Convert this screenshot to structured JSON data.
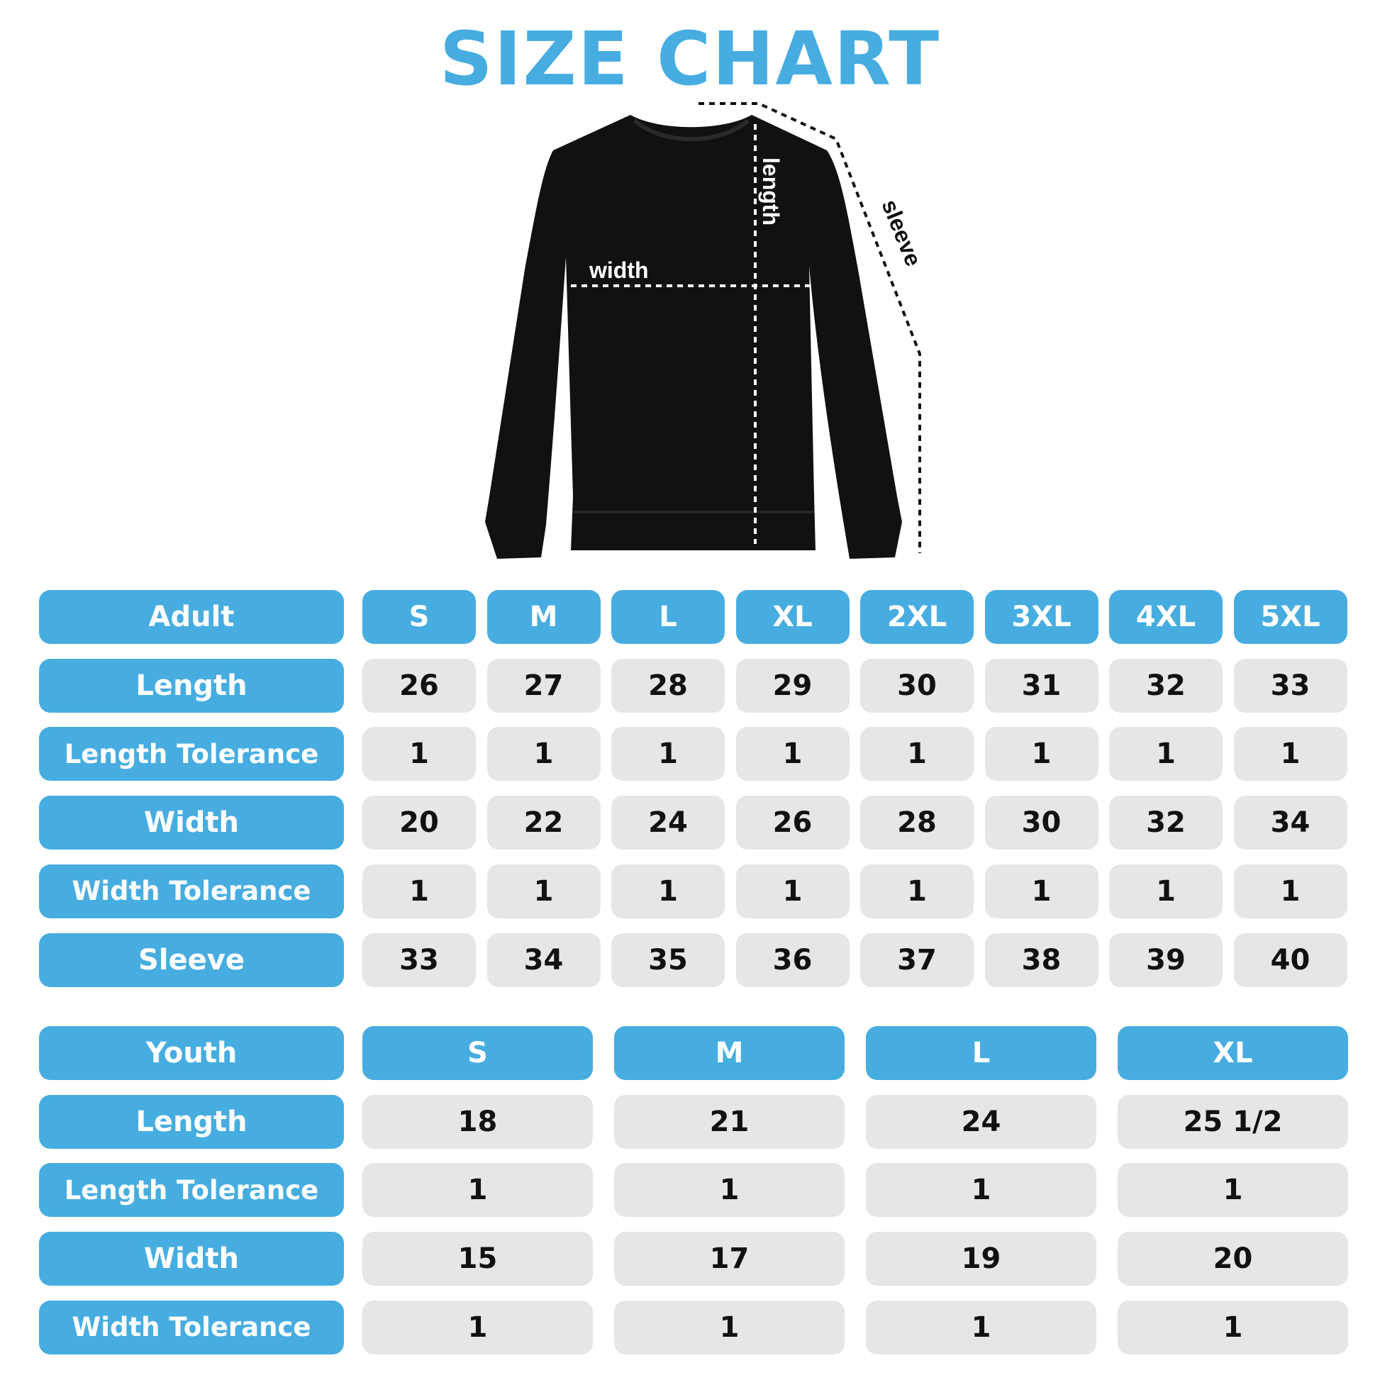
{
  "title": "SIZE CHART",
  "colors": {
    "accent": "#47ade0",
    "cell_bg": "#e6e6e8",
    "garment": "#111111"
  },
  "diagram": {
    "width_label": "width",
    "length_label": "length",
    "sleeve_label": "sleeve"
  },
  "adult": {
    "header": "Adult",
    "sizes": [
      "S",
      "M",
      "L",
      "XL",
      "2XL",
      "3XL",
      "4XL",
      "5XL"
    ],
    "rows": [
      {
        "label": "Length",
        "values": [
          "26",
          "27",
          "28",
          "29",
          "30",
          "31",
          "32",
          "33"
        ]
      },
      {
        "label": "Length Tolerance",
        "values": [
          "1",
          "1",
          "1",
          "1",
          "1",
          "1",
          "1",
          "1"
        ]
      },
      {
        "label": "Width",
        "values": [
          "20",
          "22",
          "24",
          "26",
          "28",
          "30",
          "32",
          "34"
        ]
      },
      {
        "label": "Width Tolerance",
        "values": [
          "1",
          "1",
          "1",
          "1",
          "1",
          "1",
          "1",
          "1"
        ]
      },
      {
        "label": "Sleeve",
        "values": [
          "33",
          "34",
          "35",
          "36",
          "37",
          "38",
          "39",
          "40"
        ]
      }
    ]
  },
  "youth": {
    "header": "Youth",
    "sizes": [
      "S",
      "M",
      "L",
      "XL"
    ],
    "rows": [
      {
        "label": "Length",
        "values": [
          "18",
          "21",
          "24",
          "25 1/2"
        ]
      },
      {
        "label": "Length Tolerance",
        "values": [
          "1",
          "1",
          "1",
          "1"
        ]
      },
      {
        "label": "Width",
        "values": [
          "15",
          "17",
          "19",
          "20"
        ]
      },
      {
        "label": "Width Tolerance",
        "values": [
          "1",
          "1",
          "1",
          "1"
        ]
      }
    ]
  }
}
